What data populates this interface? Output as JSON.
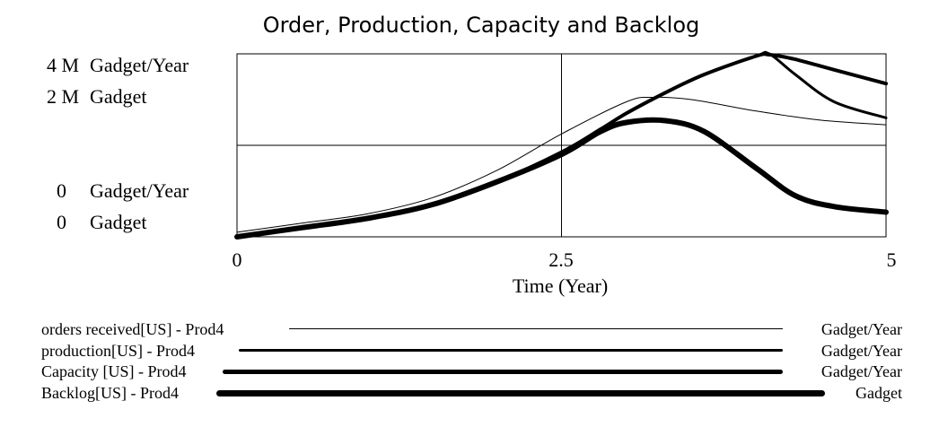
{
  "chart_data": {
    "type": "line",
    "title": "Order, Production, Capacity and Backlog",
    "xlabel": "Time (Year)",
    "x_ticks": [
      "0",
      "2.5",
      "5"
    ],
    "xlim": [
      0,
      5
    ],
    "y_axes": [
      {
        "max": "4 M",
        "min": "0",
        "unit": "Gadget/Year",
        "ylim": [
          0,
          4000000
        ]
      },
      {
        "max": "2 M",
        "min": "0",
        "unit": "Gadget",
        "ylim": [
          0,
          2000000
        ]
      }
    ],
    "grid": true,
    "legend_position": "bottom",
    "series": [
      {
        "name": "orders received[US] - Prod4",
        "unit": "Gadget/Year",
        "axis": 0,
        "weight": 1,
        "x": [
          0,
          0.5,
          1,
          1.5,
          2,
          2.5,
          3,
          3.2,
          3.5,
          4,
          4.5,
          5
        ],
        "values": [
          100000,
          300000,
          500000,
          850000,
          1450000,
          2250000,
          2950000,
          3050000,
          3000000,
          2750000,
          2550000,
          2450000
        ]
      },
      {
        "name": "production[US] - Prod4",
        "unit": "Gadget/Year",
        "axis": 0,
        "weight": 3,
        "x": [
          0,
          0.5,
          1,
          1.5,
          2,
          2.5,
          2.8,
          3,
          3.3,
          3.6,
          4,
          4.1,
          4.3,
          4.6,
          5
        ],
        "values": [
          0,
          200000,
          400000,
          700000,
          1200000,
          1850000,
          2350000,
          2700000,
          3150000,
          3550000,
          3950000,
          4000000,
          3550000,
          2950000,
          2600000
        ]
      },
      {
        "name": "Capacity [US] - Prod4",
        "unit": "Gadget/Year",
        "axis": 0,
        "weight": 4,
        "x": [
          0,
          0.5,
          1,
          1.5,
          2,
          2.5,
          2.8,
          3,
          3.3,
          3.6,
          4,
          4.1,
          4.3,
          4.6,
          5
        ],
        "values": [
          0,
          200000,
          400000,
          700000,
          1200000,
          1850000,
          2350000,
          2700000,
          3150000,
          3550000,
          3950000,
          3980000,
          3880000,
          3650000,
          3350000
        ]
      },
      {
        "name": "Backlog[US] - Prod4",
        "unit": "Gadget",
        "axis": 1,
        "weight": 6,
        "x": [
          0,
          0.5,
          1,
          1.5,
          2,
          2.5,
          2.8,
          3,
          3.3,
          3.6,
          4,
          4.3,
          4.6,
          5
        ],
        "values": [
          0,
          100000,
          200000,
          350000,
          600000,
          900000,
          1150000,
          1250000,
          1270000,
          1150000,
          750000,
          450000,
          330000,
          270000
        ]
      }
    ]
  }
}
